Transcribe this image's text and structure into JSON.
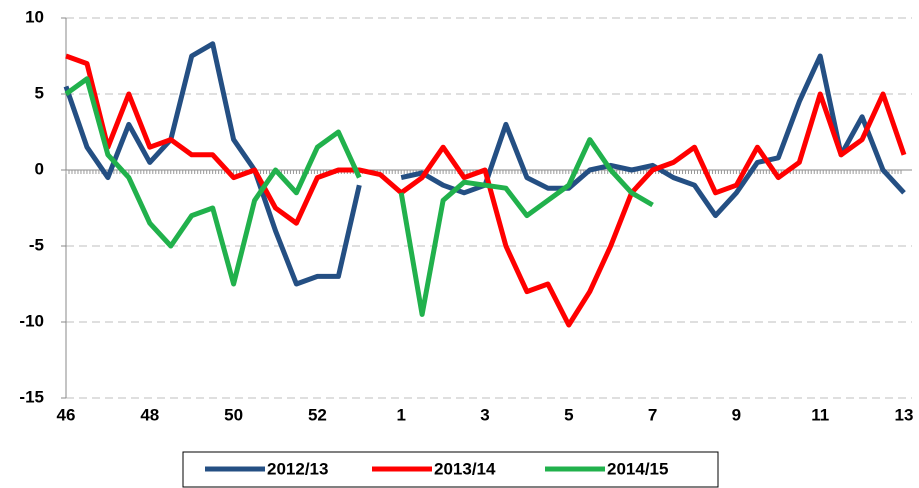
{
  "chart_data": {
    "type": "line",
    "categories": [
      "46",
      null,
      null,
      null,
      "48",
      null,
      null,
      null,
      "50",
      null,
      null,
      null,
      "52",
      null,
      null,
      null,
      "1",
      null,
      null,
      null,
      "3",
      null,
      null,
      null,
      "5",
      null,
      null,
      null,
      "7",
      null,
      null,
      null,
      "9",
      null,
      null,
      null,
      "11",
      null,
      null,
      null,
      "13"
    ],
    "series": [
      {
        "name": "2012/13",
        "color": "#244f83",
        "values": [
          5.5,
          1.5,
          -0.5,
          3,
          0.5,
          2,
          7.5,
          8.3,
          2,
          0,
          -4,
          -7.5,
          -7,
          -7,
          -1,
          null,
          -0.5,
          -0.2,
          -1,
          -1.5,
          -1,
          3,
          -0.5,
          -1.2,
          -1.2,
          0,
          0.3,
          0,
          0.3,
          -0.5,
          -1,
          -3,
          -1.5,
          0.5,
          0.8,
          4.5,
          7.5,
          1,
          3.5,
          0,
          -1.5
        ]
      },
      {
        "name": "2013/14",
        "color": "#ff0000",
        "values": [
          7.5,
          7,
          1.5,
          5,
          1.5,
          2,
          1,
          1,
          -0.5,
          0,
          -2.5,
          -3.5,
          -0.5,
          0,
          0,
          -0.3,
          -1.5,
          -0.5,
          1.5,
          -0.5,
          0,
          -5,
          -8,
          -7.5,
          -10.2,
          -8,
          -5,
          -1.5,
          0,
          0.5,
          1.5,
          -1.5,
          -1,
          1.5,
          -0.5,
          0.5,
          5,
          1,
          2,
          5,
          1
        ]
      },
      {
        "name": "2014/15",
        "color": "#21b14c",
        "values": [
          5,
          6,
          1,
          -0.5,
          -3.5,
          -5,
          -3,
          -2.5,
          -7.5,
          -2,
          0,
          -1.5,
          1.5,
          2.5,
          -0.5,
          null,
          -1.5,
          -9.5,
          -2,
          -0.8,
          -1,
          -1.2,
          -3,
          -2,
          -1,
          2,
          0,
          -1.5,
          -2.3,
          null,
          null,
          null,
          null,
          null,
          null,
          null,
          null,
          null,
          null,
          null,
          null
        ]
      }
    ],
    "ylim": [
      -15,
      10
    ],
    "yticks": [
      -15,
      -10,
      -5,
      0,
      5,
      10
    ],
    "grid": true,
    "legend": "bottom"
  }
}
